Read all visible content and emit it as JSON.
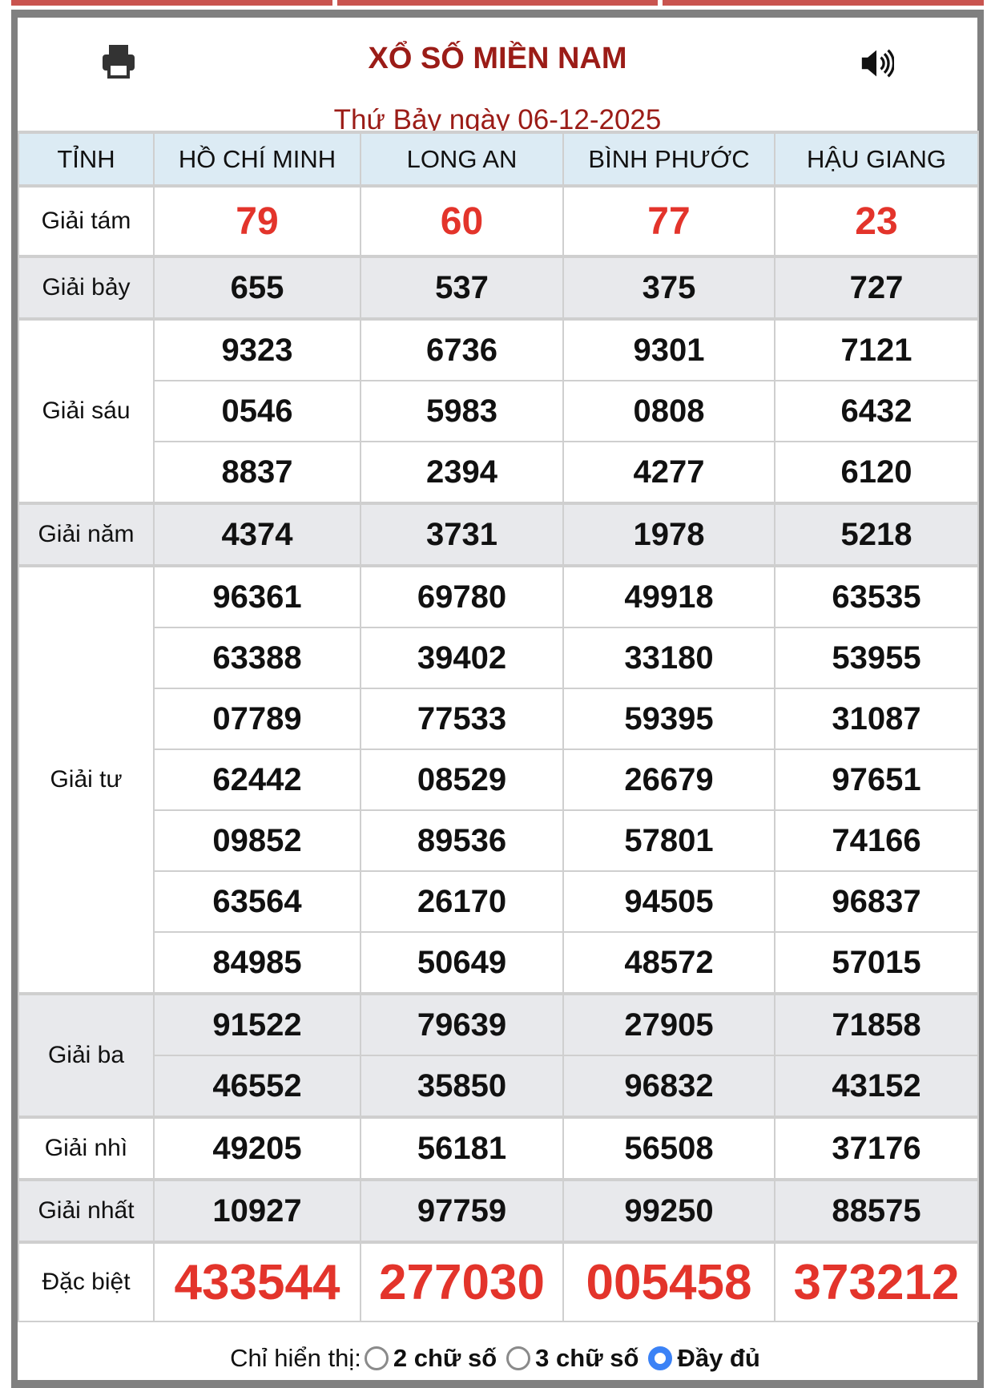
{
  "header": {
    "title": "XỔ SỐ MIỀN NAM",
    "date": "Thứ Bảy ngày 06-12-2025",
    "print_icon": "printer-icon",
    "sound_icon": "speaker-icon"
  },
  "table": {
    "columns": [
      "TỈNH",
      "HỒ CHÍ MINH",
      "LONG AN",
      "BÌNH PHƯỚC",
      "HẬU GIANG"
    ],
    "prizes": [
      {
        "label": "Giải tám",
        "rows": [
          [
            "79",
            "60",
            "77",
            "23"
          ]
        ]
      },
      {
        "label": "Giải bảy",
        "rows": [
          [
            "655",
            "537",
            "375",
            "727"
          ]
        ]
      },
      {
        "label": "Giải sáu",
        "rows": [
          [
            "9323",
            "6736",
            "9301",
            "7121"
          ],
          [
            "0546",
            "5983",
            "0808",
            "6432"
          ],
          [
            "8837",
            "2394",
            "4277",
            "6120"
          ]
        ]
      },
      {
        "label": "Giải năm",
        "rows": [
          [
            "4374",
            "3731",
            "1978",
            "5218"
          ]
        ]
      },
      {
        "label": "Giải tư",
        "rows": [
          [
            "96361",
            "69780",
            "49918",
            "63535"
          ],
          [
            "63388",
            "39402",
            "33180",
            "53955"
          ],
          [
            "07789",
            "77533",
            "59395",
            "31087"
          ],
          [
            "62442",
            "08529",
            "26679",
            "97651"
          ],
          [
            "09852",
            "89536",
            "57801",
            "74166"
          ],
          [
            "63564",
            "26170",
            "94505",
            "96837"
          ],
          [
            "84985",
            "50649",
            "48572",
            "57015"
          ]
        ]
      },
      {
        "label": "Giải ba",
        "rows": [
          [
            "91522",
            "79639",
            "27905",
            "71858"
          ],
          [
            "46552",
            "35850",
            "96832",
            "43152"
          ]
        ]
      },
      {
        "label": "Giải nhì",
        "rows": [
          [
            "49205",
            "56181",
            "56508",
            "37176"
          ]
        ]
      },
      {
        "label": "Giải nhất",
        "rows": [
          [
            "10927",
            "97759",
            "99250",
            "88575"
          ]
        ]
      },
      {
        "label": "Đặc biệt",
        "rows": [
          [
            "433544",
            "277030",
            "005458",
            "373212"
          ]
        ]
      }
    ]
  },
  "footer": {
    "label": "Chỉ hiển thị:",
    "options": [
      {
        "label": "2 chữ số",
        "selected": false
      },
      {
        "label": "3 chữ số",
        "selected": false
      },
      {
        "label": "Đầy đủ",
        "selected": true
      }
    ]
  },
  "colors": {
    "title": "#9b1c17",
    "highlight_number": "#e3342b",
    "header_bg": "#dcebf4",
    "alt_row_bg": "#e8e9ec",
    "radio_selected": "#3b82f6"
  }
}
